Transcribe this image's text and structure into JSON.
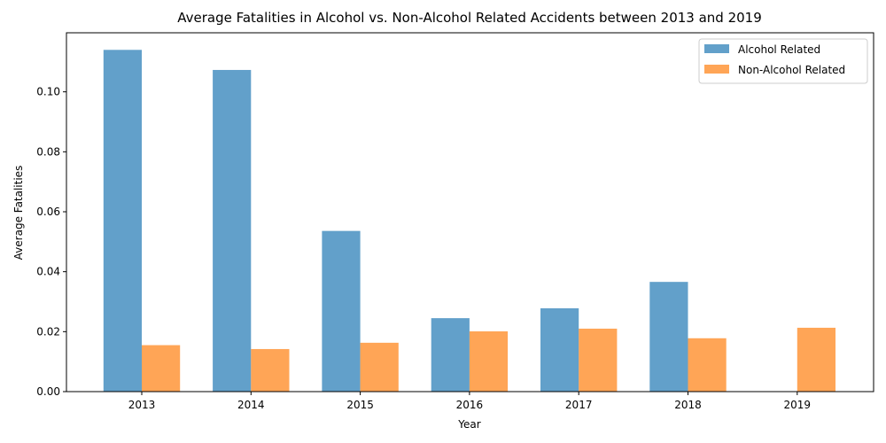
{
  "chart_data": {
    "type": "bar",
    "title": "Average Fatalities in Alcohol vs. Non-Alcohol Related Accidents between 2013 and 2019",
    "xlabel": "Year",
    "ylabel": "Average Fatalities",
    "categories": [
      "2013",
      "2014",
      "2015",
      "2016",
      "2017",
      "2018",
      "2019"
    ],
    "series": [
      {
        "name": "Alcohol Related",
        "color": "#1f77b4",
        "values": [
          0.114,
          0.1073,
          0.0536,
          0.0245,
          0.0278,
          0.0366,
          null
        ]
      },
      {
        "name": "Non-Alcohol Related",
        "color": "#ff7f0e",
        "values": [
          0.0155,
          0.0142,
          0.0163,
          0.0201,
          0.021,
          0.0178,
          0.0213
        ]
      }
    ],
    "ylim": [
      0,
      0.1197
    ],
    "yticks": [
      "0.00",
      "0.02",
      "0.04",
      "0.06",
      "0.08",
      "0.10"
    ],
    "ytick_values": [
      0,
      0.02,
      0.04,
      0.06,
      0.08,
      0.1
    ],
    "bar_opacity": 0.7,
    "grid": false,
    "legend_position": "top-right"
  }
}
